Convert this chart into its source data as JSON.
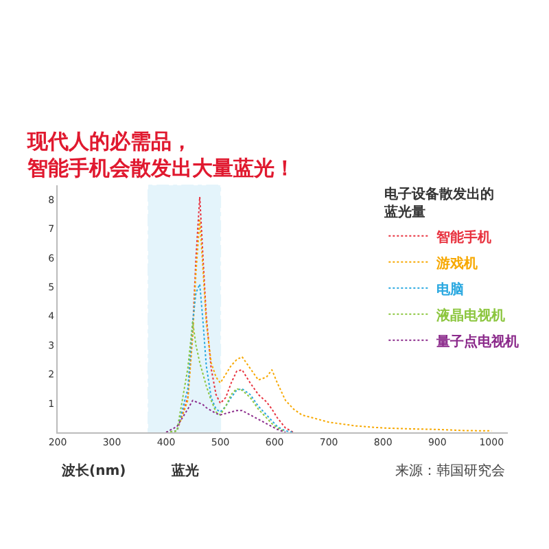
{
  "chart_data": {
    "type": "line",
    "title": "现代人的必需品，智能手机会散发出大量蓝光！",
    "xlabel": "波长(nm)",
    "legend_title": "电子设备散发出的蓝光量",
    "x": [
      400,
      420,
      440,
      449,
      455,
      462,
      468,
      474,
      483,
      492,
      500,
      510,
      520,
      530,
      540,
      555,
      570,
      585,
      595,
      605,
      620,
      635,
      650,
      700,
      750,
      800,
      850,
      900,
      925,
      950,
      1000
    ],
    "series": [
      {
        "name": "智能手机",
        "color": "#e8323f",
        "values": [
          0,
          0.05,
          1.2,
          3.5,
          6.0,
          8.1,
          6.0,
          4.0,
          2.2,
          1.3,
          1.0,
          1.2,
          1.7,
          2.1,
          2.15,
          1.7,
          1.3,
          1.05,
          0.8,
          0.5,
          0.15,
          0,
          null,
          null,
          null,
          null,
          null,
          null,
          null,
          null,
          null
        ]
      },
      {
        "name": "游戏机",
        "color": "#f7a800",
        "values": [
          0,
          0.05,
          1.1,
          3.3,
          5.5,
          7.3,
          5.6,
          3.8,
          2.4,
          1.9,
          1.7,
          2.0,
          2.3,
          2.5,
          2.6,
          2.2,
          1.8,
          1.9,
          2.15,
          1.7,
          1.1,
          0.8,
          0.6,
          0.35,
          0.22,
          0.15,
          0.12,
          0.1,
          0.08,
          0.06,
          0.05
        ]
      },
      {
        "name": "电脑",
        "color": "#29a8e0",
        "values": [
          0,
          0.05,
          1.5,
          3.8,
          4.8,
          5.1,
          3.8,
          2.3,
          1.2,
          0.8,
          0.7,
          0.9,
          1.2,
          1.45,
          1.5,
          1.3,
          0.9,
          0.6,
          0.4,
          0.2,
          0.05,
          0,
          null,
          null,
          null,
          null,
          null,
          null,
          null,
          null,
          null
        ]
      },
      {
        "name": "液晶电视机",
        "color": "#8cc63f",
        "values": [
          0,
          0.05,
          2.2,
          3.8,
          3.0,
          2.4,
          2.0,
          1.6,
          1.1,
          0.7,
          0.6,
          0.9,
          1.3,
          1.5,
          1.45,
          1.2,
          0.8,
          0.5,
          0.3,
          0.15,
          0.02,
          null,
          null,
          null,
          null,
          null,
          null,
          null,
          null,
          null,
          null
        ]
      },
      {
        "name": "量子点电视机",
        "color": "#8b2a8b",
        "values": [
          0,
          0.2,
          0.8,
          1.1,
          1.05,
          1.0,
          0.95,
          0.85,
          0.75,
          0.65,
          0.6,
          0.65,
          0.7,
          0.75,
          0.75,
          0.6,
          0.45,
          0.3,
          0.2,
          0.1,
          0,
          null,
          null,
          null,
          null,
          null,
          null,
          null,
          null,
          null,
          null
        ]
      }
    ],
    "xlim": [
      200,
      1030
    ],
    "xticks": [
      200,
      300,
      400,
      500,
      600,
      700,
      800,
      900,
      1000
    ],
    "ylim": [
      0,
      8.5
    ],
    "yticks": [
      1,
      2,
      3,
      4,
      5,
      6,
      7,
      8
    ],
    "bands": [
      {
        "axis": "x",
        "from": 367,
        "to": 500,
        "label": "蓝光",
        "color": "#29a8e0"
      }
    ],
    "annotations": [
      "来源：韩国研究会"
    ],
    "legend": "right",
    "grid": false,
    "marker": "none",
    "line_style": "dotted"
  }
}
